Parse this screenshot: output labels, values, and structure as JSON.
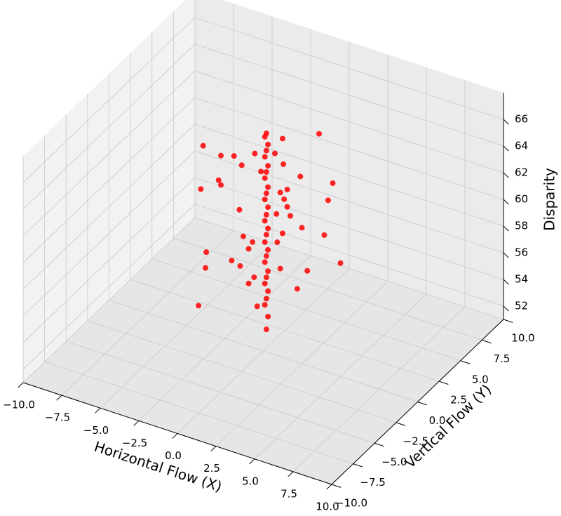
{
  "chart_data": {
    "type": "scatter3d",
    "xlabel": "Horizontal Flow (X)",
    "ylabel": "Vertical Flow (Y)",
    "zlabel": "Disparity",
    "xlim": [
      -10,
      10
    ],
    "ylim": [
      -10,
      10
    ],
    "zlim": [
      51,
      68
    ],
    "xticks": [
      {
        "value": -10,
        "label": "−10.0"
      },
      {
        "value": -7.5,
        "label": "−7.5"
      },
      {
        "value": -5,
        "label": "−5.0"
      },
      {
        "value": -2.5,
        "label": "−2.5"
      },
      {
        "value": 0,
        "label": "0.0"
      },
      {
        "value": 2.5,
        "label": "2.5"
      },
      {
        "value": 5,
        "label": "5.0"
      },
      {
        "value": 7.5,
        "label": "7.5"
      },
      {
        "value": 10,
        "label": "10.0"
      }
    ],
    "yticks": [
      {
        "value": -10,
        "label": "−10.0"
      },
      {
        "value": -7.5,
        "label": "−7.5"
      },
      {
        "value": -5,
        "label": "−5.0"
      },
      {
        "value": -2.5,
        "label": "−2.5"
      },
      {
        "value": 0,
        "label": "0.0"
      },
      {
        "value": 2.5,
        "label": "2.5"
      },
      {
        "value": 5,
        "label": "5.0"
      },
      {
        "value": 7.5,
        "label": "7.5"
      },
      {
        "value": 10,
        "label": "10.0"
      }
    ],
    "zticks": [
      52,
      54,
      56,
      58,
      60,
      62,
      64,
      66
    ],
    "grid": true,
    "series": [
      {
        "color": "#ff0000",
        "x": [
          0.2,
          0.1,
          0.3,
          0.2,
          0.1,
          0.3,
          0.2,
          0.1,
          0.3,
          0.2,
          0.1,
          0.3,
          0.2,
          0.1,
          0.3,
          0.2,
          0.1,
          0.3,
          0.2,
          0.1,
          0.3,
          0.2,
          0.1,
          0.3,
          0.2,
          0.1,
          0.3,
          0.2,
          2.5,
          1.25,
          -3.9,
          -2.75,
          -1.9,
          -0.55,
          0.75,
          1.3,
          -1.4,
          -0.15,
          2.4,
          -2.9,
          -2.75,
          4.5,
          -4.05,
          1.55,
          1.1,
          4.2,
          -1.55,
          1.35,
          1.55,
          0.85,
          2.5,
          1.75,
          1.25,
          3.95,
          -1.3,
          -0.7,
          0.9,
          -3.7,
          -0.95,
          2.85,
          5,
          -2.05,
          -3.75,
          -1.5,
          1.1,
          -0.6,
          2.2,
          -0.95,
          -4.2,
          -0.4
        ],
        "y": [
          0,
          0,
          0,
          0,
          0,
          0,
          0,
          0,
          0,
          0,
          0,
          0,
          0,
          0,
          0,
          0,
          0,
          0,
          0,
          0,
          0,
          0,
          0,
          0,
          0,
          0,
          0,
          0,
          2,
          0,
          0,
          0,
          0,
          0,
          0,
          0,
          0,
          0,
          0,
          0,
          0,
          0,
          0,
          0,
          0,
          0,
          0,
          0,
          0,
          0,
          0,
          0,
          0,
          0,
          0,
          0,
          0,
          0,
          0,
          0,
          0,
          0,
          0,
          0,
          0,
          0,
          0,
          0,
          0,
          0
        ],
        "z": [
          67.4,
          67.1,
          66.6,
          66.1,
          65.6,
          65.0,
          64.5,
          64.0,
          63.4,
          62.9,
          62.4,
          61.9,
          61.3,
          60.8,
          60.3,
          59.8,
          59.2,
          58.7,
          58.2,
          57.7,
          57.1,
          56.6,
          56.1,
          55.6,
          55.0,
          54.5,
          53.7,
          52.7,
          67.0,
          67.4,
          64.9,
          64.6,
          64.9,
          65.6,
          66.1,
          65.5,
          64.4,
          64.4,
          65.0,
          62.7,
          62.4,
          65.3,
          61.6,
          63.7,
          63.3,
          63.9,
          61.0,
          62.9,
          62.4,
          61.6,
          61.2,
          61.8,
          60.3,
          61.2,
          59.1,
          58.9,
          59.5,
          57.0,
          58.3,
          58.1,
          59.5,
          57.0,
          55.8,
          56.8,
          57.6,
          56.3,
          56.5,
          55.7,
          52.8,
          54.2
        ]
      }
    ]
  }
}
